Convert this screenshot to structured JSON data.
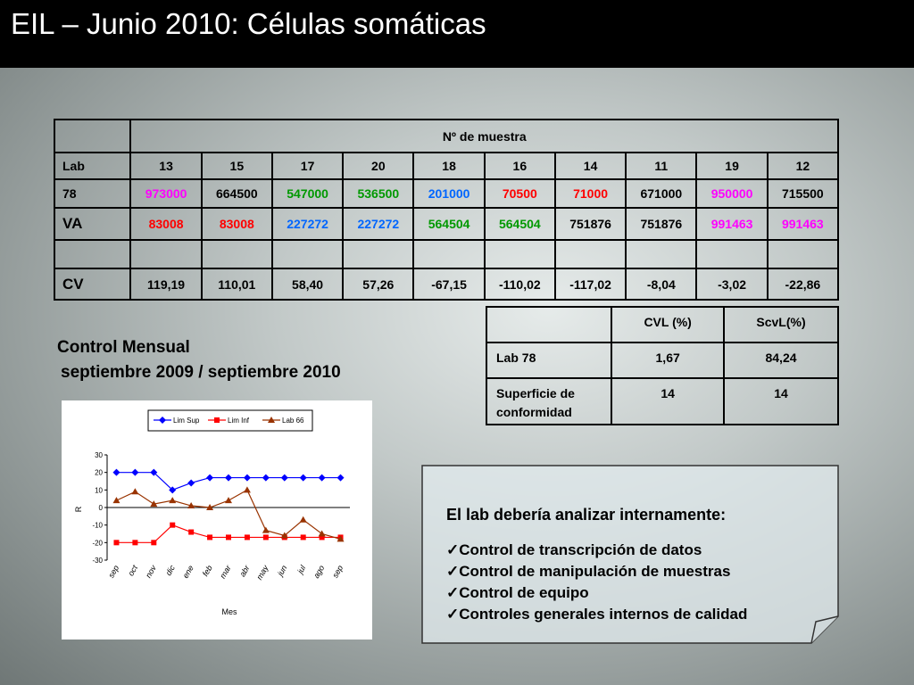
{
  "title": "EIL – Junio 2010: Células somáticas",
  "table": {
    "header": "Nº de muestra",
    "rows": [
      [
        "Lab",
        "13",
        "15",
        "17",
        "20",
        "18",
        "16",
        "14",
        "11",
        "19",
        "12"
      ],
      [
        "78",
        "973000",
        "664500",
        "547000",
        "536500",
        "201000",
        "70500",
        "71000",
        "671000",
        "950000",
        "715500"
      ],
      [
        "VA",
        "83008",
        "83008",
        "227272",
        "227272",
        "564504",
        "564504",
        "751876",
        "751876",
        "991463",
        "991463"
      ],
      [
        "",
        "",
        "",
        "",
        "",
        "",
        "",
        "",
        "",
        "",
        ""
      ],
      [
        "CV",
        "119,19",
        "110,01",
        "58,40",
        "57,26",
        "-67,15",
        "-110,02",
        "-117,02",
        "-8,04",
        "-3,02",
        "-22,86"
      ]
    ],
    "colored_rows": [
      1,
      2
    ],
    "column_colors": [
      "#000000",
      "#ff00ff",
      "#000000",
      "#009900",
      "#009900",
      "#0066ff",
      "#ff0000",
      "#ff0000",
      "#000000",
      "#ff00ff",
      "#000000"
    ],
    "va_colors": [
      "#000000",
      "#ff0000",
      "#ff0000",
      "#0066ff",
      "#0066ff",
      "#009900",
      "#009900",
      "#000000",
      "#000000",
      "#ff00ff",
      "#ff00ff"
    ]
  },
  "summary_table": {
    "header": [
      "",
      "CVL (%)",
      "ScvL(%)"
    ],
    "rows": [
      [
        "Lab 78",
        "1,67",
        "84,24"
      ],
      [
        "Superficie de conformidad",
        "14",
        "14"
      ]
    ]
  },
  "caption": {
    "line1": "Control Mensual",
    "line2": "septiembre 2009 / septiembre 2010"
  },
  "note": {
    "heading": "El lab debería analizar internamente:",
    "items": [
      "✓Control de transcripción de datos",
      "✓Control de manipulación de muestras",
      "✓Control de equipo",
      "✓Controles generales internos de calidad"
    ]
  },
  "chart_data": {
    "type": "line",
    "x_label": "Mes",
    "y_label": "R",
    "categories": [
      "sep",
      "oct",
      "nov",
      "dic",
      "ene",
      "feb",
      "mar",
      "abr",
      "may",
      "jun",
      "jul",
      "ago",
      "sep"
    ],
    "series": [
      {
        "name": "Lim Sup",
        "color": "#0000ff",
        "marker": "diamond",
        "values": [
          20,
          20,
          20,
          10,
          14,
          17,
          17,
          17,
          17,
          17,
          17,
          17,
          17
        ]
      },
      {
        "name": "Lim Inf",
        "color": "#ff0000",
        "marker": "square",
        "values": [
          -20,
          -20,
          -20,
          -10,
          -14,
          -17,
          -17,
          -17,
          -17,
          -17,
          -17,
          -17,
          -17
        ]
      },
      {
        "name": "Lab 66",
        "color": "#993300",
        "marker": "triangle",
        "values": [
          4,
          9,
          2,
          4,
          1,
          0,
          4,
          10,
          -13,
          -16,
          -7,
          -15,
          -18
        ]
      }
    ],
    "ylim": [
      -30,
      30
    ],
    "yticks": [
      -30,
      -20,
      -10,
      0,
      10,
      20,
      30
    ]
  }
}
